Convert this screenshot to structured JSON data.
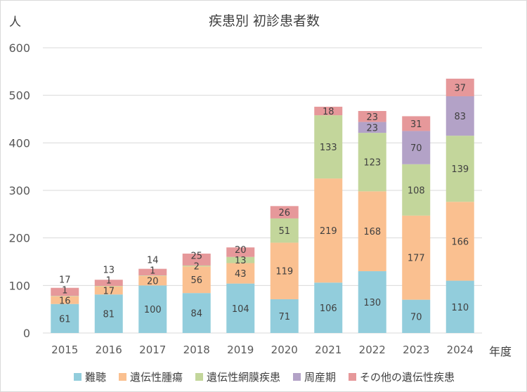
{
  "chart_data": {
    "type": "bar",
    "stacked": true,
    "title": "疾患別 初診患者数",
    "ylabel": "人",
    "xlabel": "年度",
    "ylim": [
      0,
      600
    ],
    "yticks": [
      0,
      100,
      200,
      300,
      400,
      500,
      600
    ],
    "grid": true,
    "legend": "bottom",
    "categories": [
      "2015",
      "2016",
      "2017",
      "2018",
      "2019",
      "2020",
      "2021",
      "2022",
      "2023",
      "2024"
    ],
    "series": [
      {
        "name": "難聴",
        "color": "#92CDDC",
        "values": [
          61,
          81,
          100,
          84,
          104,
          71,
          106,
          130,
          70,
          110
        ]
      },
      {
        "name": "遺伝性腫瘍",
        "color": "#FAC090",
        "values": [
          16,
          17,
          20,
          56,
          43,
          119,
          219,
          168,
          177,
          166
        ]
      },
      {
        "name": "遺伝性網膜疾患",
        "color": "#C3D69B",
        "values": [
          1,
          1,
          1,
          2,
          13,
          51,
          133,
          123,
          108,
          139
        ]
      },
      {
        "name": "周産期",
        "color": "#B3A2C7",
        "values": [
          0,
          0,
          0,
          0,
          0,
          0,
          0,
          23,
          70,
          83
        ]
      },
      {
        "name": "その他の遺伝性疾患",
        "color": "#E6989A",
        "values": [
          17,
          13,
          14,
          25,
          20,
          26,
          18,
          23,
          31,
          37
        ]
      }
    ]
  }
}
